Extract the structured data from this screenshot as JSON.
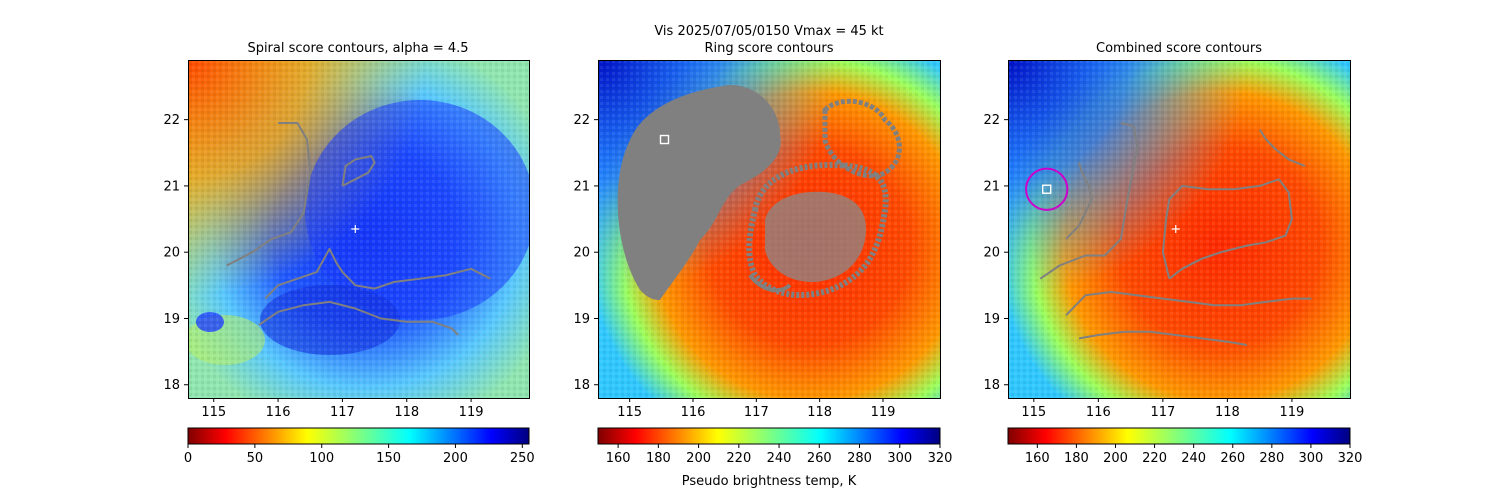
{
  "figure": {
    "title_line1": "Vis  2025/07/05/0150    Vmax = 45 kt"
  },
  "chart_data": [
    {
      "type": "heatmap",
      "title": "Spiral score contours, alpha =  4.5",
      "colormap": "jet_r",
      "xlim": [
        114.6,
        119.9
      ],
      "ylim": [
        17.8,
        22.9
      ],
      "x_ticks": [
        "115",
        "116",
        "117",
        "118",
        "119"
      ],
      "y_ticks": [
        "18",
        "19",
        "20",
        "21",
        "22"
      ],
      "colorbar": {
        "range": [
          0,
          255
        ],
        "ticks": [
          "0",
          "50",
          "100",
          "150",
          "200",
          "250"
        ],
        "label": ""
      },
      "center_marker": {
        "symbol": "+",
        "x": 117.2,
        "y": 20.35,
        "color": "#ffffff"
      },
      "contours": [
        [
          [
            115.2,
            19.8
          ],
          [
            115.6,
            20.0
          ],
          [
            115.9,
            20.2
          ],
          [
            116.2,
            20.3
          ],
          [
            116.4,
            20.6
          ],
          [
            116.5,
            21.2
          ],
          [
            116.45,
            21.7
          ],
          [
            116.3,
            21.95
          ],
          [
            116.0,
            21.95
          ]
        ],
        [
          [
            117.0,
            21.0
          ],
          [
            117.2,
            21.1
          ],
          [
            117.4,
            21.2
          ],
          [
            117.5,
            21.35
          ],
          [
            117.45,
            21.45
          ],
          [
            117.2,
            21.4
          ],
          [
            117.05,
            21.3
          ],
          [
            117.0,
            21.0
          ]
        ],
        [
          [
            115.8,
            19.3
          ],
          [
            116.0,
            19.5
          ],
          [
            116.3,
            19.6
          ],
          [
            116.6,
            19.7
          ],
          [
            116.8,
            20.05
          ],
          [
            116.9,
            19.85
          ],
          [
            117.0,
            19.7
          ],
          [
            117.2,
            19.5
          ],
          [
            117.5,
            19.45
          ],
          [
            117.8,
            19.55
          ],
          [
            118.2,
            19.6
          ],
          [
            118.6,
            19.65
          ],
          [
            119.0,
            19.75
          ],
          [
            119.3,
            19.6
          ]
        ],
        [
          [
            115.7,
            18.9
          ],
          [
            116.0,
            19.1
          ],
          [
            116.4,
            19.2
          ],
          [
            116.8,
            19.25
          ],
          [
            117.2,
            19.15
          ],
          [
            117.6,
            19.0
          ],
          [
            118.0,
            18.95
          ],
          [
            118.4,
            18.95
          ],
          [
            118.7,
            18.85
          ],
          [
            118.8,
            18.75
          ]
        ]
      ]
    },
    {
      "type": "heatmap",
      "title": "Ring score contours",
      "colormap": "jet_r",
      "xlim": [
        114.5,
        119.9
      ],
      "ylim": [
        17.8,
        22.9
      ],
      "x_ticks": [
        "115",
        "116",
        "117",
        "118",
        "119"
      ],
      "y_ticks": [
        "18",
        "19",
        "20",
        "21",
        "22"
      ],
      "colorbar": {
        "range": [
          150,
          320
        ],
        "ticks": [
          "160",
          "180",
          "200",
          "220",
          "240",
          "260",
          "280",
          "300",
          "320"
        ],
        "label": "Pseudo brightness temp, K"
      },
      "square_marker": {
        "x": 115.55,
        "y": 21.7,
        "color": "#ffffff"
      },
      "contours": []
    },
    {
      "type": "heatmap",
      "title": "Combined score contours",
      "colormap": "jet_r",
      "xlim": [
        114.6,
        119.9
      ],
      "ylim": [
        17.8,
        22.9
      ],
      "x_ticks": [
        "115",
        "116",
        "117",
        "118",
        "119"
      ],
      "y_ticks": [
        "18",
        "19",
        "20",
        "21",
        "22"
      ],
      "colorbar": {
        "range": [
          145,
          320
        ],
        "ticks": [
          "160",
          "180",
          "200",
          "220",
          "240",
          "260",
          "280",
          "300",
          "320"
        ],
        "label": ""
      },
      "center_marker": {
        "symbol": "+",
        "x": 117.2,
        "y": 20.35,
        "color": "#ffffff"
      },
      "square_marker": {
        "x": 115.2,
        "y": 20.95,
        "color": "#ffffff"
      },
      "circle_marker": {
        "x": 115.2,
        "y": 20.95,
        "radius_deg": 0.32,
        "color": "#cc00cc"
      },
      "contours": [
        [
          [
            115.1,
            19.6
          ],
          [
            115.4,
            19.8
          ],
          [
            115.8,
            19.95
          ],
          [
            116.1,
            19.95
          ],
          [
            116.35,
            20.2
          ],
          [
            116.45,
            20.8
          ],
          [
            116.55,
            21.3
          ],
          [
            116.6,
            21.6
          ],
          [
            116.55,
            21.9
          ],
          [
            116.35,
            21.95
          ]
        ],
        [
          [
            115.5,
            20.2
          ],
          [
            115.7,
            20.4
          ],
          [
            115.8,
            20.6
          ],
          [
            115.9,
            20.8
          ],
          [
            115.85,
            21.0
          ],
          [
            115.75,
            21.2
          ],
          [
            115.7,
            21.35
          ]
        ],
        [
          [
            117.1,
            19.6
          ],
          [
            117.3,
            19.75
          ],
          [
            117.6,
            19.9
          ],
          [
            117.9,
            20.0
          ],
          [
            118.3,
            20.1
          ],
          [
            118.6,
            20.15
          ],
          [
            118.9,
            20.25
          ],
          [
            119.0,
            20.5
          ],
          [
            118.95,
            20.9
          ],
          [
            118.8,
            21.1
          ],
          [
            118.5,
            21.0
          ],
          [
            118.1,
            20.95
          ],
          [
            117.7,
            20.95
          ],
          [
            117.3,
            21.0
          ],
          [
            117.1,
            20.8
          ],
          [
            117.05,
            20.5
          ],
          [
            117.0,
            20.0
          ],
          [
            117.1,
            19.6
          ]
        ],
        [
          [
            115.5,
            19.05
          ],
          [
            115.8,
            19.35
          ],
          [
            116.2,
            19.4
          ],
          [
            116.6,
            19.35
          ],
          [
            117.0,
            19.3
          ],
          [
            117.4,
            19.25
          ],
          [
            117.8,
            19.2
          ],
          [
            118.2,
            19.2
          ],
          [
            118.6,
            19.25
          ],
          [
            119.0,
            19.3
          ],
          [
            119.3,
            19.3
          ]
        ],
        [
          [
            115.7,
            18.7
          ],
          [
            116.0,
            18.75
          ],
          [
            116.4,
            18.8
          ],
          [
            116.8,
            18.8
          ],
          [
            117.2,
            18.75
          ],
          [
            117.6,
            18.7
          ],
          [
            118.0,
            18.65
          ],
          [
            118.3,
            18.6
          ]
        ],
        [
          [
            118.5,
            21.85
          ],
          [
            118.6,
            21.7
          ],
          [
            118.75,
            21.55
          ],
          [
            118.95,
            21.4
          ],
          [
            119.2,
            21.3
          ]
        ]
      ]
    }
  ]
}
